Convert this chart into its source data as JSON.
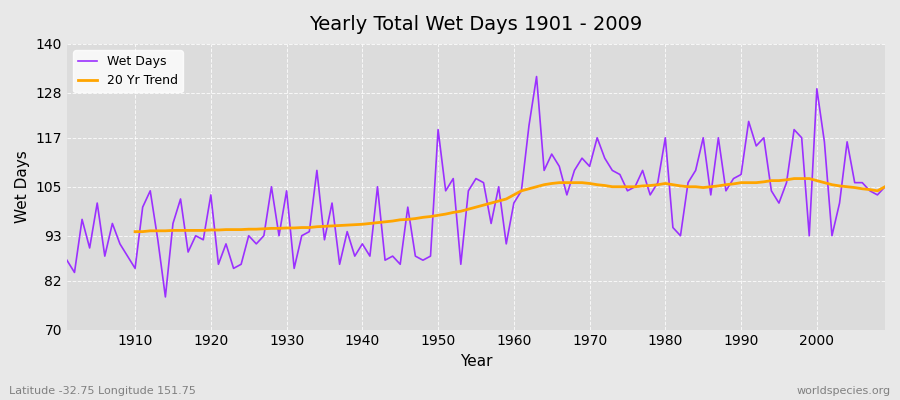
{
  "title": "Yearly Total Wet Days 1901 - 2009",
  "xlabel": "Year",
  "ylabel": "Wet Days",
  "footnote_left": "Latitude -32.75 Longitude 151.75",
  "footnote_right": "worldspecies.org",
  "ylim": [
    70,
    140
  ],
  "yticks": [
    70,
    82,
    93,
    105,
    117,
    128,
    140
  ],
  "line_color": "#9B30FF",
  "trend_color": "#FFA500",
  "bg_color": "#E8E8E8",
  "plot_bg_color": "#DCDCDC",
  "legend_wet_days": "Wet Days",
  "legend_trend": "20 Yr Trend",
  "years": [
    1901,
    1902,
    1903,
    1904,
    1905,
    1906,
    1907,
    1908,
    1909,
    1910,
    1911,
    1912,
    1913,
    1914,
    1915,
    1916,
    1917,
    1918,
    1919,
    1920,
    1921,
    1922,
    1923,
    1924,
    1925,
    1926,
    1927,
    1928,
    1929,
    1930,
    1931,
    1932,
    1933,
    1934,
    1935,
    1936,
    1937,
    1938,
    1939,
    1940,
    1941,
    1942,
    1943,
    1944,
    1945,
    1946,
    1947,
    1948,
    1949,
    1950,
    1951,
    1952,
    1953,
    1954,
    1955,
    1956,
    1957,
    1958,
    1959,
    1960,
    1961,
    1962,
    1963,
    1964,
    1965,
    1966,
    1967,
    1968,
    1969,
    1970,
    1971,
    1972,
    1973,
    1974,
    1975,
    1976,
    1977,
    1978,
    1979,
    1980,
    1981,
    1982,
    1983,
    1984,
    1985,
    1986,
    1987,
    1988,
    1989,
    1990,
    1991,
    1992,
    1993,
    1994,
    1995,
    1996,
    1997,
    1998,
    1999,
    2000,
    2001,
    2002,
    2003,
    2004,
    2005,
    2006,
    2007,
    2008,
    2009
  ],
  "wet_days": [
    87,
    84,
    97,
    90,
    101,
    88,
    96,
    91,
    88,
    85,
    100,
    104,
    92,
    78,
    96,
    102,
    89,
    93,
    92,
    103,
    86,
    91,
    85,
    86,
    93,
    91,
    93,
    105,
    93,
    104,
    85,
    93,
    94,
    109,
    92,
    101,
    86,
    94,
    88,
    91,
    88,
    105,
    87,
    88,
    86,
    100,
    88,
    87,
    88,
    119,
    104,
    107,
    86,
    104,
    107,
    106,
    96,
    105,
    91,
    101,
    104,
    120,
    132,
    109,
    113,
    110,
    103,
    109,
    112,
    110,
    117,
    112,
    109,
    108,
    104,
    105,
    109,
    103,
    106,
    117,
    95,
    93,
    106,
    109,
    117,
    103,
    117,
    104,
    107,
    108,
    121,
    115,
    117,
    104,
    101,
    106,
    119,
    117,
    93,
    129,
    116,
    93,
    101,
    116,
    106,
    106,
    104,
    103,
    105
  ],
  "trend_years": [
    1910,
    1911,
    1912,
    1913,
    1914,
    1915,
    1916,
    1917,
    1918,
    1919,
    1920,
    1921,
    1922,
    1923,
    1924,
    1925,
    1926,
    1927,
    1928,
    1929,
    1930,
    1931,
    1932,
    1933,
    1934,
    1935,
    1936,
    1937,
    1938,
    1939,
    1940,
    1941,
    1942,
    1943,
    1944,
    1945,
    1946,
    1947,
    1948,
    1949,
    1950,
    1951,
    1952,
    1953,
    1954,
    1955,
    1956,
    1957,
    1958,
    1959,
    1960,
    1961,
    1962,
    1963,
    1964,
    1965,
    1966,
    1967,
    1968,
    1969,
    1970,
    1971,
    1972,
    1973,
    1974,
    1975,
    1976,
    1977,
    1978,
    1979,
    1980,
    1981,
    1982,
    1983,
    1984,
    1985,
    1986,
    1987,
    1988,
    1989,
    1990,
    1991,
    1992,
    1993,
    1994,
    1995,
    1996,
    1997,
    1998,
    1999,
    2000,
    2001,
    2002,
    2003,
    2004,
    2005,
    2006,
    2007,
    2008,
    2009
  ],
  "trend_values": [
    94,
    94,
    94.2,
    94.2,
    94.2,
    94.3,
    94.3,
    94.3,
    94.3,
    94.3,
    94.4,
    94.4,
    94.5,
    94.5,
    94.5,
    94.6,
    94.6,
    94.7,
    94.8,
    94.8,
    94.9,
    94.9,
    95.0,
    95.0,
    95.2,
    95.3,
    95.4,
    95.5,
    95.6,
    95.7,
    95.8,
    96.0,
    96.2,
    96.4,
    96.6,
    96.9,
    97.0,
    97.2,
    97.5,
    97.7,
    98.0,
    98.3,
    98.7,
    99.0,
    99.5,
    100.0,
    100.5,
    101.0,
    101.5,
    102.0,
    103.0,
    104.0,
    104.5,
    105.0,
    105.5,
    105.8,
    106.0,
    106.0,
    106.0,
    106.0,
    105.8,
    105.5,
    105.3,
    105.0,
    105.0,
    105.0,
    105.0,
    105.2,
    105.3,
    105.5,
    105.8,
    105.5,
    105.2,
    105.0,
    105.0,
    104.8,
    105.0,
    105.2,
    105.5,
    105.7,
    106.0,
    106.0,
    106.0,
    106.2,
    106.5,
    106.5,
    106.7,
    107.0,
    107.0,
    107.0,
    106.5,
    106.0,
    105.5,
    105.2,
    105.0,
    104.8,
    104.5,
    104.3,
    104.0,
    105.0
  ]
}
